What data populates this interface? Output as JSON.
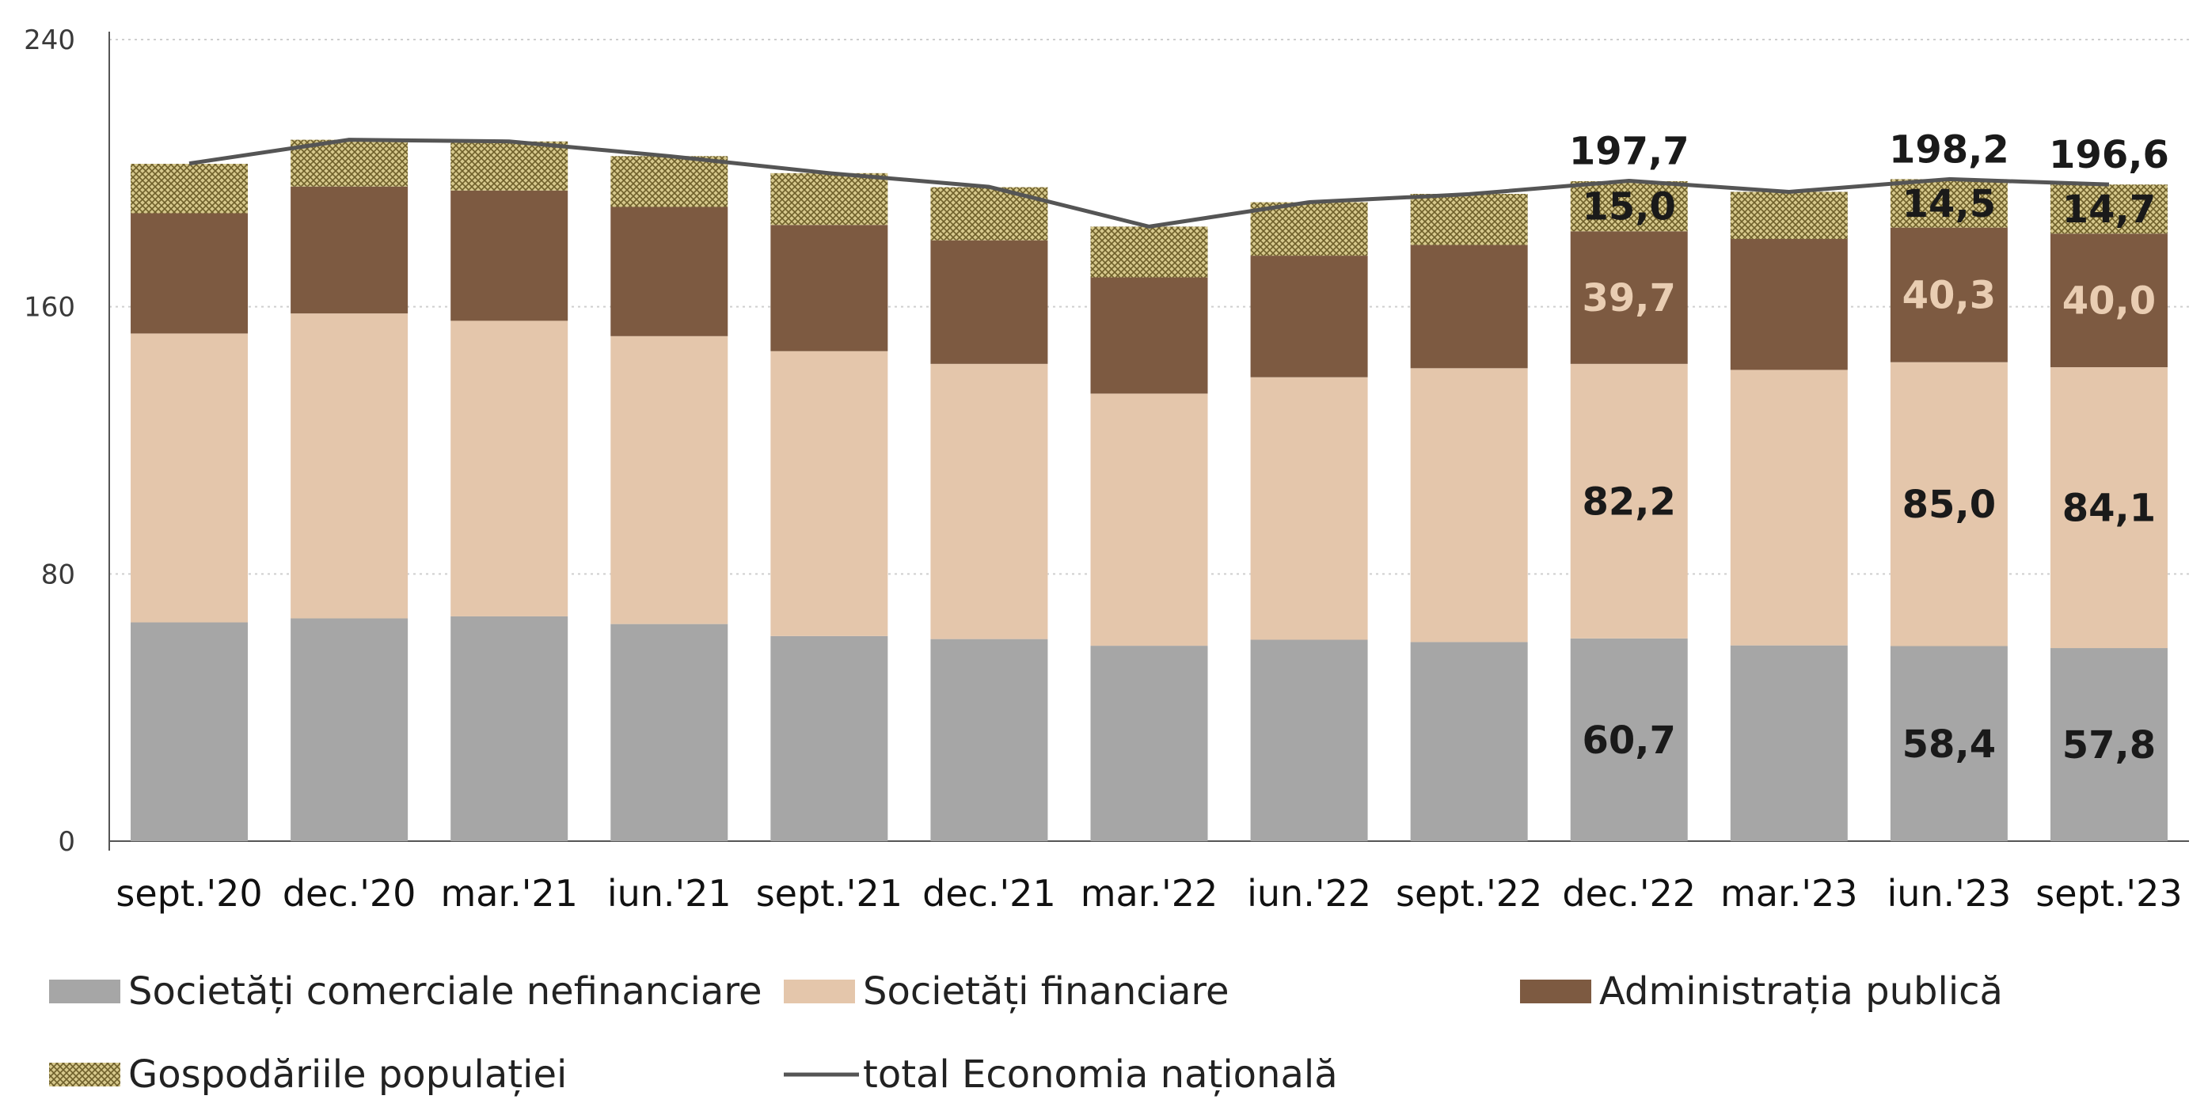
{
  "chart_data": {
    "type": "bar",
    "stacked": true,
    "ylim": [
      0,
      240
    ],
    "yticks": [
      "0",
      "80",
      "160",
      "240"
    ],
    "categories": [
      "sept.'20",
      "dec.'20",
      "mar.'21",
      "iun.'21",
      "sept.'21",
      "dec.'21",
      "mar.'22",
      "iun.'22",
      "sept.'22",
      "dec.'22",
      "mar.'23",
      "iun.'23",
      "sept.'23"
    ],
    "series": [
      {
        "name": "Societăți comerciale nefinanciare",
        "color": "#a6a6a6",
        "values": [
          65.5,
          66.7,
          67.3,
          65.0,
          61.4,
          60.5,
          58.5,
          60.3,
          59.6,
          60.7,
          58.6,
          58.4,
          57.8
        ]
      },
      {
        "name": "Societăți financiare",
        "color": "#e4c6ab",
        "values": [
          86.5,
          91.3,
          88.5,
          86.2,
          85.3,
          82.4,
          75.5,
          78.6,
          82.0,
          82.2,
          82.5,
          85.0,
          84.1
        ]
      },
      {
        "name": "Administrația publică",
        "color": "#7d5a41",
        "values": [
          36.0,
          38.0,
          39.0,
          38.7,
          37.8,
          37.0,
          34.8,
          36.4,
          36.9,
          39.7,
          39.2,
          40.3,
          40.0
        ]
      },
      {
        "name": "Gospodăriile populației",
        "color": "#c9b472",
        "pattern": "crosshatch",
        "values": [
          14.8,
          14.0,
          14.7,
          15.2,
          15.5,
          15.9,
          15.2,
          16.0,
          15.3,
          15.0,
          14.1,
          14.5,
          14.7
        ]
      }
    ],
    "line": {
      "name": "total Economia națională",
      "color": "#555555",
      "values": [
        202.9,
        210.0,
        209.5,
        205.1,
        200.0,
        195.9,
        184.0,
        191.3,
        193.7,
        197.7,
        194.4,
        198.2,
        196.6
      ]
    },
    "data_labels": [
      {
        "category": 9,
        "labels": [
          "60,7",
          "82,2",
          "39,7",
          "15,0",
          "197,7"
        ]
      },
      {
        "category": 11,
        "labels": [
          "58,4",
          "85,0",
          "40,3",
          "14,5",
          "198,2"
        ]
      },
      {
        "category": 12,
        "labels": [
          "57,8",
          "84,1",
          "40,0",
          "14,7",
          "196,6"
        ]
      }
    ],
    "label_colors": [
      "#1a1a1a",
      "#1a1a1a",
      "#e9cdb2",
      "#1a1a1a",
      "#1a1a1a"
    ],
    "legend": [
      "Societăți comerciale nefinanciare",
      "Societăți financiare",
      "Administrația publică",
      "Gospodăriile populației",
      "total Economia națională"
    ],
    "legend_position": "bottom",
    "grid": "horizontal-dotted"
  }
}
